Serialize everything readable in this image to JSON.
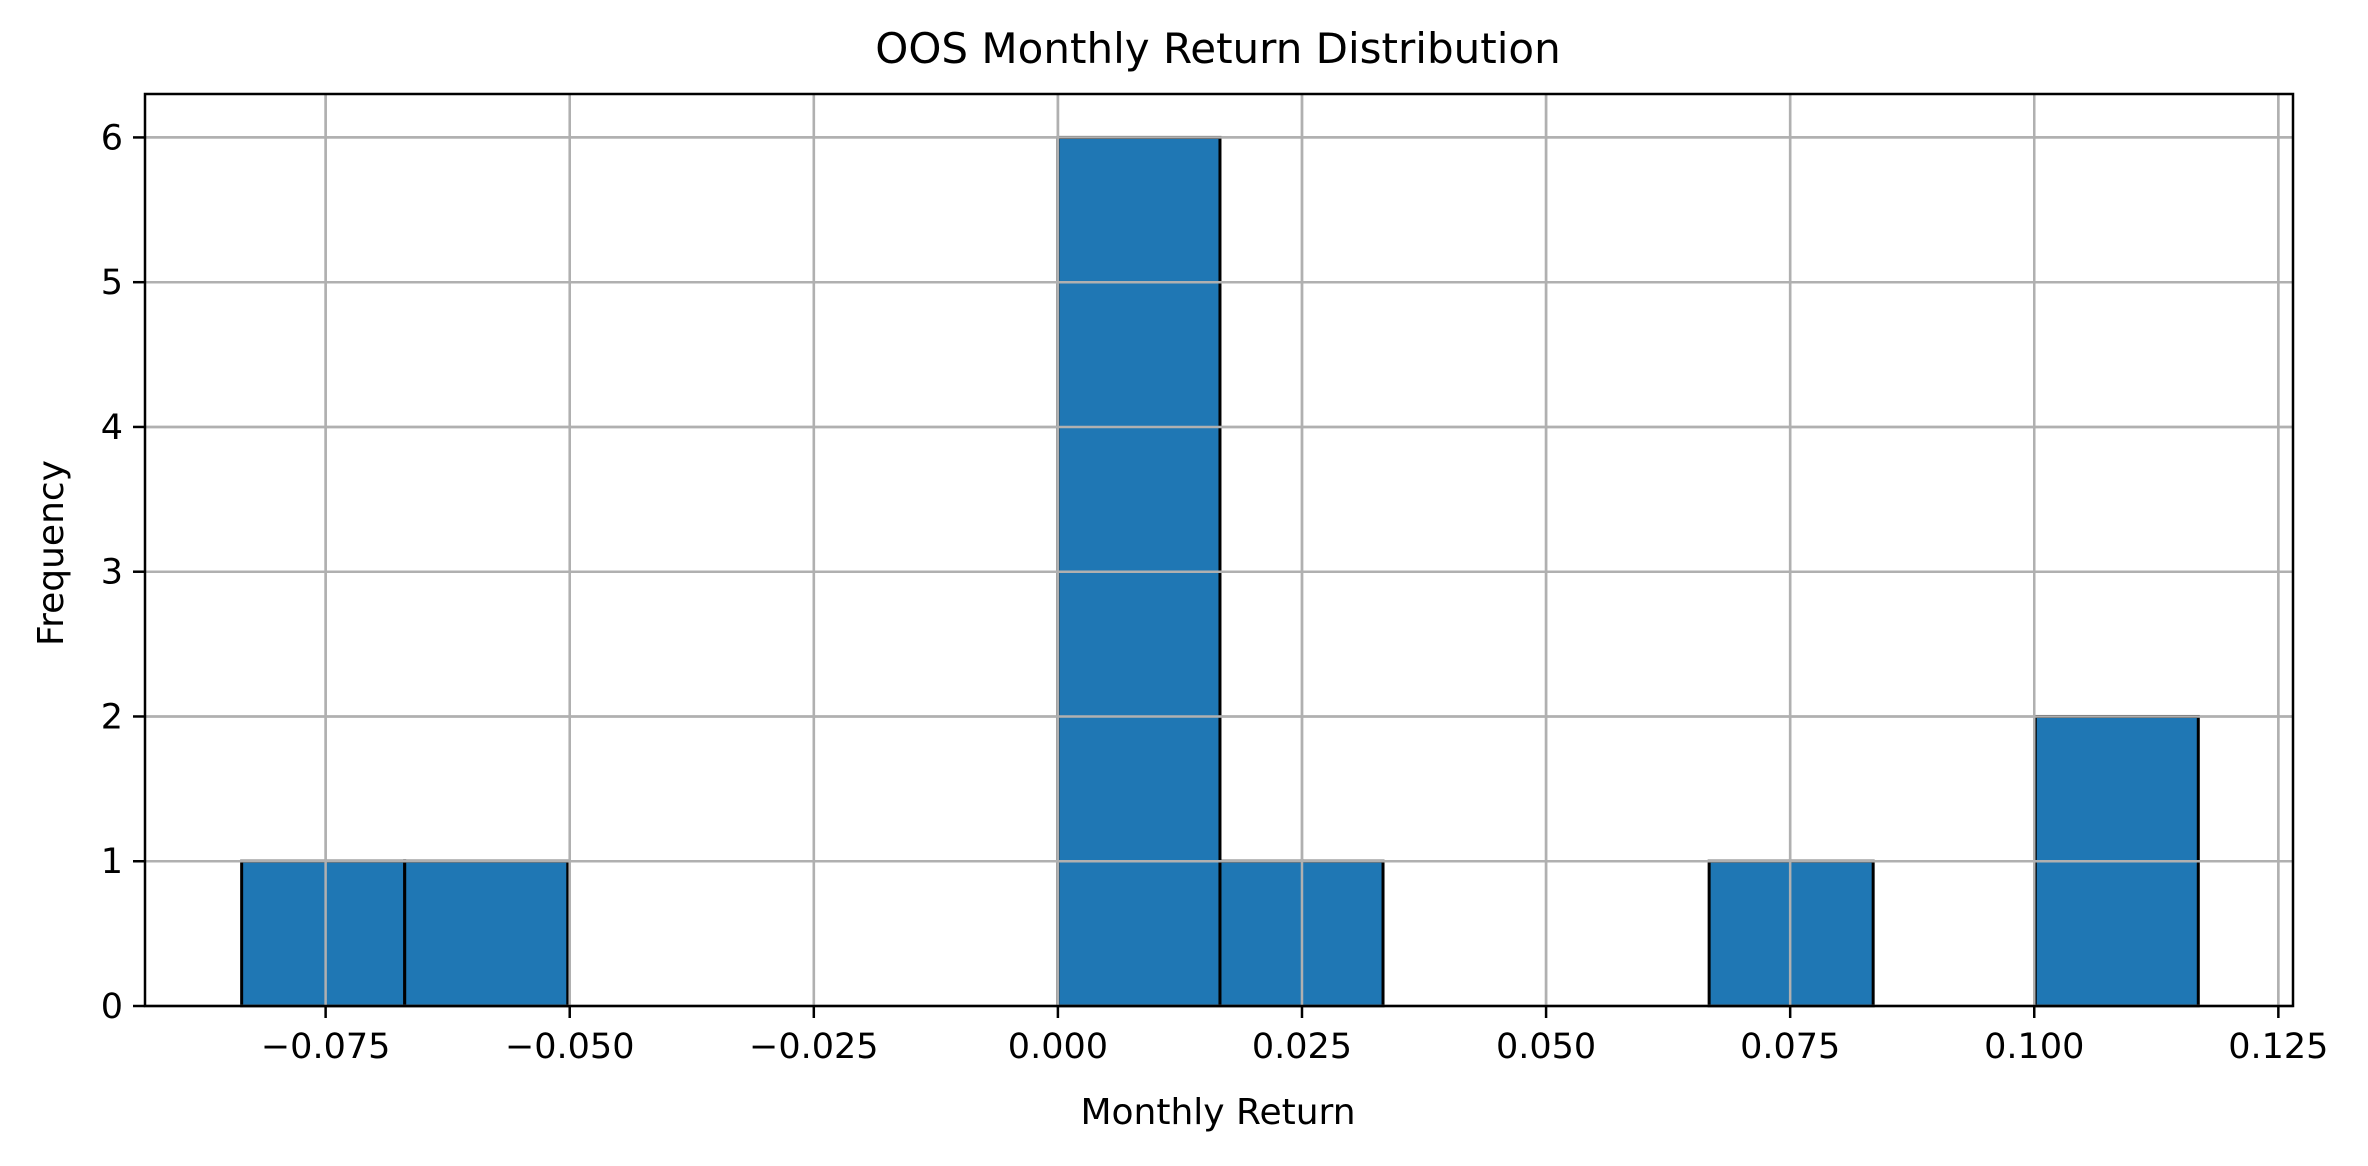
{
  "chart_data": {
    "type": "bar",
    "title": "OOS Monthly Return Distribution",
    "xlabel": "Monthly Return",
    "ylabel": "Frequency",
    "xlim": [
      -0.0935,
      0.1265
    ],
    "ylim": [
      0,
      6.3
    ],
    "bins": [
      {
        "start": -0.0836,
        "end": -0.0669,
        "count": 1
      },
      {
        "start": -0.0669,
        "end": -0.0502,
        "count": 1
      },
      {
        "start": -0.0502,
        "end": -0.0335,
        "count": 0
      },
      {
        "start": -0.0335,
        "end": -0.0167,
        "count": 0
      },
      {
        "start": -0.0167,
        "end": 0.0,
        "count": 0
      },
      {
        "start": 0.0,
        "end": 0.0166,
        "count": 6
      },
      {
        "start": 0.0166,
        "end": 0.0333,
        "count": 1
      },
      {
        "start": 0.0333,
        "end": 0.05,
        "count": 0
      },
      {
        "start": 0.05,
        "end": 0.0667,
        "count": 0
      },
      {
        "start": 0.0667,
        "end": 0.0835,
        "count": 1
      },
      {
        "start": 0.0835,
        "end": 0.1001,
        "count": 0
      },
      {
        "start": 0.1001,
        "end": 0.1168,
        "count": 2
      }
    ],
    "x_ticks": [
      {
        "value": -0.075,
        "label": "−0.075"
      },
      {
        "value": -0.05,
        "label": "−0.050"
      },
      {
        "value": -0.025,
        "label": "−0.025"
      },
      {
        "value": 0.0,
        "label": "0.000"
      },
      {
        "value": 0.025,
        "label": "0.025"
      },
      {
        "value": 0.05,
        "label": "0.050"
      },
      {
        "value": 0.075,
        "label": "0.075"
      },
      {
        "value": 0.1,
        "label": "0.100"
      },
      {
        "value": 0.125,
        "label": "0.125"
      }
    ],
    "y_ticks": [
      {
        "value": 0,
        "label": "0"
      },
      {
        "value": 1,
        "label": "1"
      },
      {
        "value": 2,
        "label": "2"
      },
      {
        "value": 3,
        "label": "3"
      },
      {
        "value": 4,
        "label": "4"
      },
      {
        "value": 5,
        "label": "5"
      },
      {
        "value": 6,
        "label": "6"
      }
    ],
    "grid": true,
    "colors": {
      "bar_fill": "#1f77b4",
      "bar_edge": "#000000",
      "grid": "#b0b0b0",
      "axes": "#000000"
    }
  }
}
